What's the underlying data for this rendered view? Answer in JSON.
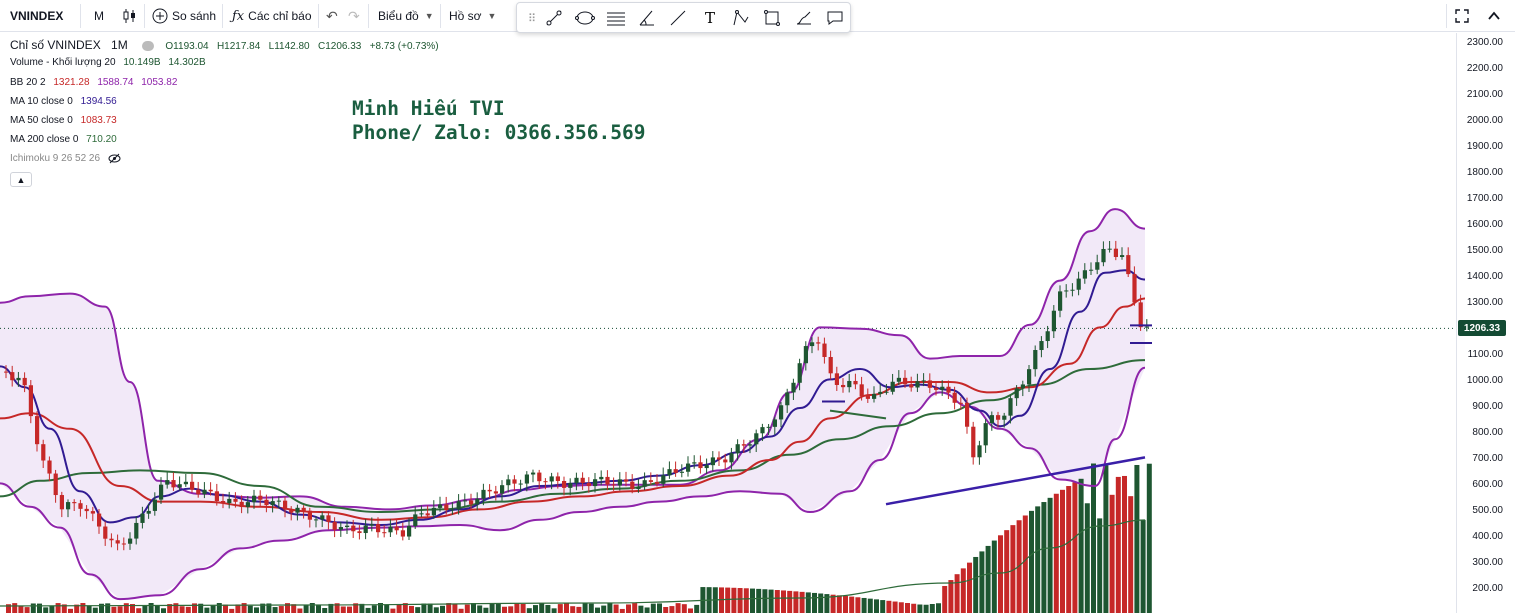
{
  "toolbar": {
    "symbol": "VNINDEX",
    "interval": "M",
    "compare": "So sánh",
    "indicators": "Các chỉ báo",
    "chart_menu": "Biểu đồ",
    "profile_menu": "Hồ sơ"
  },
  "legend": {
    "title": "Chỉ số VNINDEX",
    "timeframe": "1M",
    "ohlc": {
      "open": "O1193.04",
      "high": "H1217.84",
      "low": "L1142.80",
      "close": "C1206.33",
      "change": "+8.73 (+0.73%)"
    },
    "volume": {
      "label": "Volume - Khối lượng 20",
      "v1": "10.149B",
      "v2": "14.302B"
    },
    "bb": {
      "label": "BB 20 2",
      "mid": "1321.28",
      "upper": "1588.74",
      "lower": "1053.82"
    },
    "ma10": {
      "label": "MA 10 close 0",
      "value": "1394.56"
    },
    "ma50": {
      "label": "MA 50 close 0",
      "value": "1083.73"
    },
    "ma200": {
      "label": "MA 200 close 0",
      "value": "710.20"
    },
    "ichimoku": {
      "label": "Ichimoku 9 26 52 26"
    }
  },
  "watermark": {
    "line1": "Minh Hiếu TVI",
    "line2": "Phone/ Zalo: 0366.356.569"
  },
  "price_axis": {
    "ticks": [
      "2300.00",
      "2200.00",
      "2100.00",
      "2000.00",
      "1900.00",
      "1800.00",
      "1700.00",
      "1600.00",
      "1500.00",
      "1400.00",
      "1300.00",
      "1200.00",
      "1100.00",
      "1000.00",
      "900.00",
      "800.00",
      "700.00",
      "600.00",
      "500.00",
      "400.00",
      "300.00",
      "200.00"
    ],
    "current": "1206.33"
  },
  "colors": {
    "up": "#1e5631",
    "down": "#c62828",
    "bb": "#8e24aa",
    "bb_fill": "#ede0f5",
    "ma10": "#311b92",
    "ma50": "#c62828",
    "ma200": "#2e6b3a",
    "trend": "#3a1fa8",
    "tag": "#134a33"
  },
  "icons": {
    "compare": "plus-circle-icon",
    "indicators": "fx-icon",
    "candles": "candlestick-icon",
    "fullscreen": "expand-icon",
    "collapse": "chevron-up-icon"
  }
}
